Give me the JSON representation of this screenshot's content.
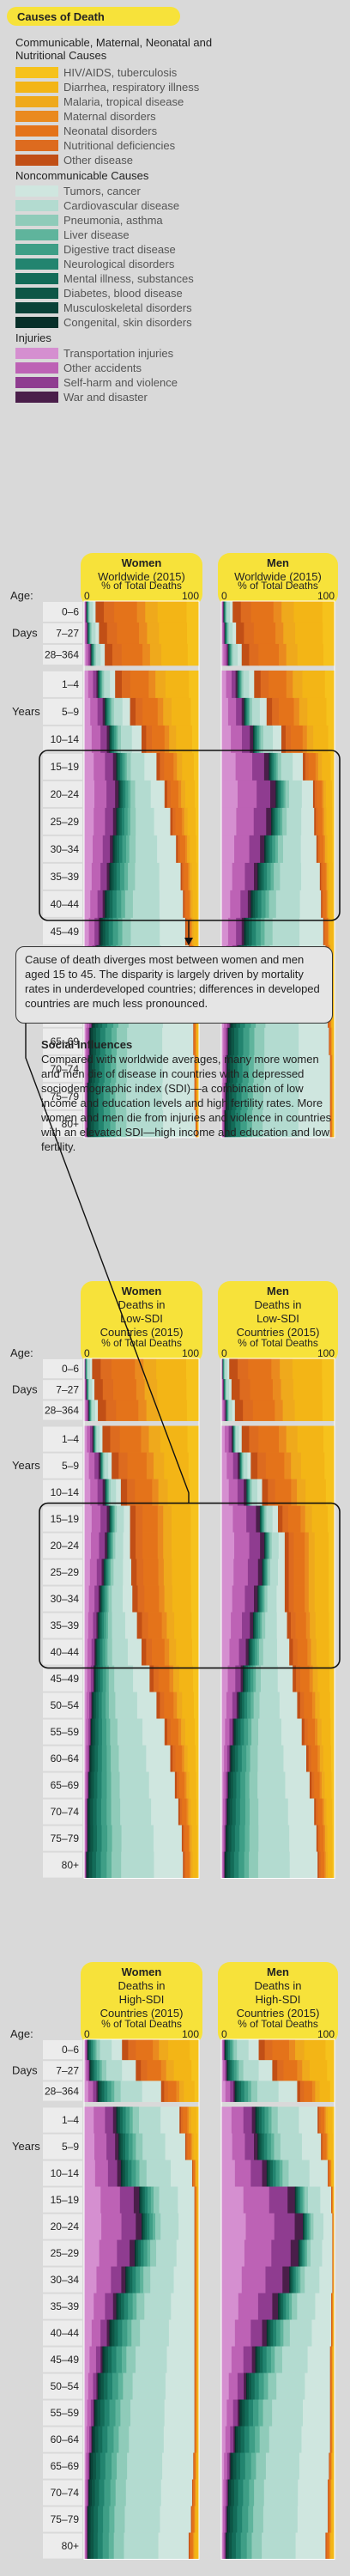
{
  "title": "Causes of Death",
  "legend": {
    "groups": [
      {
        "name": "Communicable, Maternal, Neonatal and Nutritional Causes",
        "items": [
          {
            "label": "HIV/AIDS, tuberculosis",
            "color": "#f6c21c"
          },
          {
            "label": "Diarrhea, respiratory illness",
            "color": "#f3b516"
          },
          {
            "label": "Malaria, tropical disease",
            "color": "#efa91c"
          },
          {
            "label": "Maternal disorders",
            "color": "#ea8a1f"
          },
          {
            "label": "Neonatal disorders",
            "color": "#e4731a"
          },
          {
            "label": "Nutritional deficiencies",
            "color": "#dd6b1f"
          },
          {
            "label": "Other disease",
            "color": "#c14f16"
          }
        ]
      },
      {
        "name": "Noncommunicable Causes",
        "items": [
          {
            "label": "Tumors, cancer",
            "color": "#cfe6df"
          },
          {
            "label": "Cardiovascular disease",
            "color": "#b3dbd0"
          },
          {
            "label": "Pneumonia, asthma",
            "color": "#8fcbb9"
          },
          {
            "label": "Liver disease",
            "color": "#5fb49c"
          },
          {
            "label": "Digestive tract disease",
            "color": "#3e9e86"
          },
          {
            "label": "Neurological disorders",
            "color": "#22846f"
          },
          {
            "label": "Mental illness, substances",
            "color": "#136b58"
          },
          {
            "label": "Diabetes, blood disease",
            "color": "#0d5646"
          },
          {
            "label": "Musculoskeletal disorders",
            "color": "#0a4238"
          },
          {
            "label": "Congenital, skin disorders",
            "color": "#072f29"
          }
        ]
      },
      {
        "name": "Injuries",
        "items": [
          {
            "label": "Transportation injuries",
            "color": "#d58fd0"
          },
          {
            "label": "Other accidents",
            "color": "#bd62b5"
          },
          {
            "label": "Self-harm and violence",
            "color": "#8f3c90"
          },
          {
            "label": "War and disaster",
            "color": "#4a1e4a"
          }
        ]
      }
    ]
  },
  "axis_label": "% of Total Deaths",
  "age_label": "Age:",
  "days_label": "Days",
  "years_label": "Years",
  "annotation": "Cause of death diverges most between women and men aged 15 to 45. The disparity is largely driven by mortality rates in underdeveloped countries; differences in developed countries are much less pronounced.",
  "social": {
    "heading": "Social Influences",
    "text": "Compared with worldwide averages, many more women and men die of disease in countries with a depressed sociodemographic index (SDI)—a combination of low income and education levels and high fertility rates. More women and men die from injuries and violence in countries with an elevated SDI—high income and education and low fertility."
  },
  "chart_data": [
    {
      "type": "area",
      "title": "Worldwide (2015)",
      "panels": [
        "Women",
        "Men"
      ],
      "xlabel": "% of Total Deaths",
      "xlim": [
        0,
        100
      ],
      "x_ticks": [
        "0",
        "100"
      ],
      "categories": [
        "0–6",
        "7–27",
        "28–364",
        "1–4",
        "5–9",
        "10–14",
        "15–19",
        "20–24",
        "25–29",
        "30–34",
        "35–39",
        "40–44",
        "45–49",
        "50–54",
        "55–59",
        "60–64",
        "65–69",
        "70–74",
        "75–79",
        "80+"
      ],
      "series_groups": {
        "Women": {
          "Injuries": [
            2,
            3,
            6,
            12,
            18,
            22,
            28,
            30,
            28,
            25,
            22,
            18,
            14,
            11,
            9,
            7,
            5,
            4,
            3,
            3
          ],
          "Noncommunicable": [
            8,
            10,
            12,
            15,
            22,
            28,
            35,
            40,
            47,
            55,
            62,
            68,
            74,
            80,
            85,
            88,
            90,
            92,
            93,
            94
          ]
        },
        "Men": {
          "Injuries": [
            2,
            3,
            6,
            14,
            20,
            28,
            42,
            48,
            44,
            38,
            32,
            26,
            20,
            15,
            11,
            8,
            6,
            5,
            4,
            3
          ],
          "Noncommunicable": [
            8,
            10,
            12,
            15,
            20,
            25,
            30,
            33,
            38,
            46,
            55,
            62,
            70,
            77,
            82,
            86,
            89,
            91,
            92,
            93
          ]
        }
      }
    },
    {
      "type": "area",
      "title": "Deaths in Low-SDI Countries (2015)",
      "panels": [
        "Women",
        "Men"
      ],
      "xlabel": "% of Total Deaths",
      "xlim": [
        0,
        100
      ],
      "x_ticks": [
        "0",
        "100"
      ],
      "categories": [
        "0–6",
        "7–27",
        "28–364",
        "1–4",
        "5–9",
        "10–14",
        "15–19",
        "20–24",
        "25–29",
        "30–34",
        "35–39",
        "40–44",
        "45–49",
        "50–54",
        "55–59",
        "60–64",
        "65–69",
        "70–74",
        "75–79",
        "80+"
      ],
      "series_groups": {
        "Women": {
          "Injuries": [
            1,
            2,
            4,
            8,
            14,
            18,
            22,
            20,
            17,
            14,
            12,
            10,
            9,
            7,
            6,
            5,
            4,
            3,
            3,
            2
          ],
          "Noncommunicable": [
            6,
            7,
            8,
            8,
            10,
            14,
            18,
            20,
            24,
            28,
            34,
            40,
            48,
            56,
            64,
            70,
            75,
            79,
            82,
            84
          ]
        },
        "Men": {
          "Injuries": [
            1,
            2,
            4,
            10,
            16,
            22,
            34,
            38,
            36,
            32,
            28,
            24,
            19,
            15,
            11,
            8,
            6,
            5,
            4,
            3
          ],
          "Noncommunicable": [
            6,
            7,
            8,
            8,
            10,
            14,
            16,
            18,
            20,
            24,
            30,
            36,
            44,
            52,
            60,
            67,
            72,
            77,
            80,
            82
          ]
        }
      }
    },
    {
      "type": "area",
      "title": "Deaths in High-SDI Countries (2015)",
      "panels": [
        "Women",
        "Men"
      ],
      "xlabel": "% of Total Deaths",
      "xlim": [
        0,
        100
      ],
      "x_ticks": [
        "0",
        "100"
      ],
      "categories": [
        "0–6",
        "7–27",
        "28–364",
        "1–4",
        "5–9",
        "10–14",
        "15–19",
        "20–24",
        "25–29",
        "30–34",
        "35–39",
        "40–44",
        "45–49",
        "50–54",
        "55–59",
        "60–64",
        "65–69",
        "70–74",
        "75–79",
        "80+"
      ],
      "series_groups": {
        "Women": {
          "Injuries": [
            3,
            5,
            12,
            28,
            30,
            32,
            48,
            50,
            44,
            36,
            28,
            22,
            16,
            12,
            9,
            7,
            5,
            4,
            3,
            3
          ],
          "Noncommunicable": [
            30,
            40,
            55,
            55,
            58,
            62,
            48,
            46,
            52,
            60,
            68,
            74,
            80,
            84,
            87,
            89,
            90,
            90,
            90,
            88
          ]
        },
        "Men": {
          "Injuries": [
            3,
            5,
            12,
            30,
            32,
            40,
            65,
            72,
            68,
            60,
            50,
            40,
            30,
            22,
            16,
            12,
            8,
            6,
            5,
            4
          ],
          "Noncommunicable": [
            30,
            40,
            55,
            55,
            56,
            54,
            32,
            26,
            30,
            38,
            47,
            57,
            66,
            74,
            80,
            84,
            87,
            88,
            89,
            88
          ]
        }
      }
    }
  ],
  "panel_headers": [
    {
      "women": "Women",
      "men": "Men",
      "sub": "Worldwide (2015)"
    },
    {
      "women": "Women",
      "men": "Men",
      "sub": "Deaths in Low-SDI Countries (2015)"
    },
    {
      "women": "Women",
      "men": "Men",
      "sub": "Deaths in High-SDI Countries (2015)"
    }
  ]
}
